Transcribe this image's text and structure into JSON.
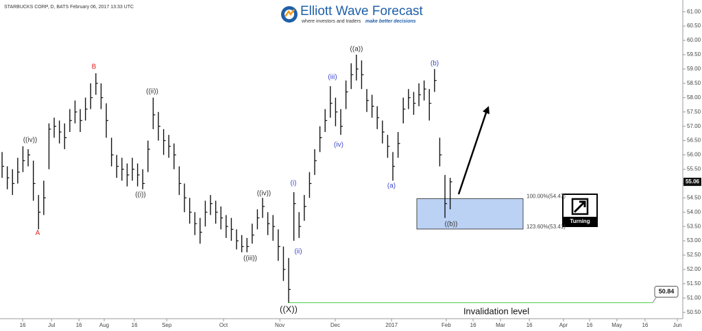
{
  "chart_data": {
    "type": "ohlc",
    "title": "STARBUCKS CORP, D, BATS  February 06, 2017 13:33 UTC",
    "logo": {
      "name": "Elliott Wave Forecast",
      "tagline_1": "where investors and traders",
      "tagline_2": "make better decisions"
    },
    "color": "#111111",
    "x": [
      0,
      2,
      4,
      6,
      8,
      10,
      12,
      14,
      16,
      18,
      20,
      22,
      24,
      26,
      28,
      30,
      32,
      34,
      36,
      38,
      40,
      42,
      44,
      46,
      48,
      50,
      52,
      54,
      56,
      58,
      60,
      62,
      64,
      66,
      68,
      70,
      72,
      74,
      76,
      78,
      80,
      82,
      84,
      86,
      88,
      90,
      92,
      94,
      96,
      98,
      100,
      102,
      104,
      106,
      108,
      110,
      112,
      114,
      116,
      118,
      120,
      122,
      124,
      126,
      128,
      130,
      132,
      134,
      136,
      138,
      140,
      142,
      144,
      146,
      148,
      150,
      152,
      154,
      156,
      158,
      160,
      162,
      164,
      166,
      168,
      170,
      172
    ],
    "high": [
      56.1,
      55.6,
      55.5,
      55.9,
      56.3,
      56.2,
      55.8,
      54.6,
      55.1,
      57.1,
      57.3,
      57.2,
      57.1,
      57.6,
      57.9,
      57.6,
      58.0,
      58.5,
      58.85,
      58.5,
      57.8,
      56.6,
      56.0,
      55.9,
      55.7,
      55.9,
      55.7,
      55.5,
      56.5,
      58.0,
      57.5,
      56.9,
      56.7,
      56.4,
      55.6,
      55.0,
      54.5,
      54.0,
      53.8,
      54.4,
      54.6,
      54.4,
      54.2,
      53.9,
      53.8,
      53.4,
      53.2,
      53.1,
      53.6,
      54.1,
      54.5,
      54.0,
      53.9,
      53.4,
      52.8,
      52.4,
      54.7,
      54.0,
      54.6,
      55.4,
      56.2,
      57.0,
      57.6,
      58.4,
      58.0,
      57.6,
      58.6,
      59.2,
      59.5,
      59.3,
      58.3,
      58.1,
      57.7,
      57.2,
      56.7,
      56.1,
      56.8,
      58.0,
      58.3,
      58.2,
      58.5,
      58.6,
      58.3,
      59.0,
      56.6,
      55.3,
      55.2
    ],
    "low": [
      55.2,
      54.8,
      54.6,
      55.0,
      55.4,
      55.6,
      54.4,
      53.4,
      53.9,
      55.5,
      56.6,
      56.4,
      56.2,
      56.8,
      57.1,
      56.8,
      57.2,
      57.6,
      58.1,
      57.6,
      56.6,
      55.6,
      55.2,
      55.1,
      54.9,
      55.1,
      54.9,
      54.8,
      55.4,
      56.9,
      56.5,
      56.0,
      55.9,
      55.5,
      54.6,
      54.0,
      53.6,
      53.2,
      52.9,
      53.5,
      53.9,
      53.6,
      53.4,
      53.1,
      53.0,
      52.7,
      52.6,
      52.6,
      52.9,
      53.4,
      53.8,
      53.2,
      53.0,
      52.3,
      51.6,
      50.84,
      53.0,
      53.1,
      53.7,
      54.5,
      55.3,
      56.1,
      56.8,
      57.3,
      57.0,
      56.7,
      57.6,
      58.3,
      58.6,
      58.3,
      57.5,
      57.3,
      56.9,
      56.4,
      55.9,
      55.1,
      55.9,
      57.1,
      57.6,
      57.4,
      57.7,
      57.9,
      57.2,
      58.2,
      55.6,
      53.8,
      54.1
    ],
    "close": [
      55.6,
      55.2,
      55.0,
      55.4,
      55.8,
      56.0,
      55.0,
      54.0,
      54.5,
      56.9,
      57.0,
      56.8,
      56.6,
      57.2,
      57.5,
      57.2,
      57.6,
      58.0,
      58.5,
      58.0,
      57.2,
      56.0,
      55.6,
      55.5,
      55.3,
      55.5,
      55.3,
      55.0,
      56.2,
      57.4,
      57.0,
      56.5,
      56.3,
      56.0,
      55.0,
      54.5,
      54.0,
      53.6,
      53.3,
      54.0,
      54.3,
      54.0,
      53.8,
      53.5,
      53.4,
      53.0,
      52.8,
      52.8,
      53.2,
      53.8,
      54.2,
      53.6,
      53.5,
      52.8,
      52.0,
      51.3,
      54.3,
      53.5,
      54.2,
      55.0,
      55.8,
      56.6,
      57.2,
      57.8,
      57.5,
      57.0,
      58.2,
      58.8,
      59.0,
      58.8,
      57.9,
      57.7,
      57.3,
      56.8,
      56.3,
      55.6,
      56.4,
      57.6,
      58.0,
      57.8,
      58.1,
      58.3,
      57.8,
      58.6,
      56.0,
      54.3,
      55.06
    ],
    "xlim": [
      -0.8,
      261.3
    ],
    "xticks": [
      {
        "value": 7.9,
        "label": "16"
      },
      {
        "value": 19,
        "label": "Jul"
      },
      {
        "value": 29.5,
        "label": "16"
      },
      {
        "value": 39.2,
        "label": "Aug"
      },
      {
        "value": 50.8,
        "label": "16"
      },
      {
        "value": 63.2,
        "label": "Sep"
      },
      {
        "value": 85,
        "label": "Oct"
      },
      {
        "value": 106.6,
        "label": "Nov"
      },
      {
        "value": 127.9,
        "label": "Dec"
      },
      {
        "value": 149.5,
        "label": "2017"
      },
      {
        "value": 170.5,
        "label": "Feb"
      },
      {
        "value": 180.8,
        "label": "16"
      },
      {
        "value": 191.3,
        "label": "Mar"
      },
      {
        "value": 202.4,
        "label": "16"
      },
      {
        "value": 215.5,
        "label": "Apr"
      },
      {
        "value": 225.5,
        "label": "16"
      },
      {
        "value": 236,
        "label": "May"
      },
      {
        "value": 246.8,
        "label": "16"
      },
      {
        "value": 259.2,
        "label": "Jun"
      }
    ],
    "ylim": [
      50.28,
      61.41
    ],
    "yticks": [
      {
        "value": 50.5,
        "label": "50.50"
      },
      {
        "value": 51,
        "label": "51.00"
      },
      {
        "value": 51.5,
        "label": "51.50"
      },
      {
        "value": 52,
        "label": "52.00"
      },
      {
        "value": 52.5,
        "label": "52.50"
      },
      {
        "value": 53,
        "label": "53.00"
      },
      {
        "value": 53.5,
        "label": "53.50"
      },
      {
        "value": 54,
        "label": "54.00"
      },
      {
        "value": 54.5,
        "label": "54.50"
      },
      {
        "value": 55,
        "label": "55.00"
      },
      {
        "value": 55.5,
        "label": "55.50"
      },
      {
        "value": 56,
        "label": "56.00"
      },
      {
        "value": 56.5,
        "label": "56.50"
      },
      {
        "value": 57,
        "label": "57.00"
      },
      {
        "value": 57.5,
        "label": "57.50"
      },
      {
        "value": 58,
        "label": "58.00"
      },
      {
        "value": 58.5,
        "label": "58.50"
      },
      {
        "value": 59,
        "label": "59.00"
      },
      {
        "value": 59.5,
        "label": "59.50"
      },
      {
        "value": 60,
        "label": "60.00"
      },
      {
        "value": 60.5,
        "label": "60.50"
      },
      {
        "value": 61,
        "label": "61.00"
      }
    ],
    "zone": {
      "top": 54.47,
      "bottom": 53.41,
      "top_label": "100.00%(54.47)",
      "bottom_label": "123.60%(53.41)",
      "color": "#bcd2f5"
    },
    "invalidation": {
      "value": 50.84,
      "text": "Invalidation level",
      "color": "#5ad65a"
    },
    "wave_labels": [
      {
        "text": "A",
        "color": "#e0201c"
      },
      {
        "text": "B",
        "color": "#e0201c"
      },
      {
        "text": "((iv))",
        "color": "#333333"
      },
      {
        "text": "((i))",
        "color": "#333333"
      },
      {
        "text": "((ii))",
        "color": "#333333"
      },
      {
        "text": "((iii))",
        "color": "#333333"
      },
      {
        "text": "((iv))",
        "color": "#333333"
      },
      {
        "text": "((X))",
        "color": "#222222"
      },
      {
        "text": "(i)",
        "color": "#3b46c9"
      },
      {
        "text": "(ii)",
        "color": "#3b46c9"
      },
      {
        "text": "(iii)",
        "color": "#3b46c9"
      },
      {
        "text": "(iv)",
        "color": "#3b46c9"
      },
      {
        "text": "((a))",
        "color": "#333333"
      },
      {
        "text": "(a)",
        "color": "#3b46c9"
      },
      {
        "text": "(b)",
        "color": "#3b46c9"
      },
      {
        "text": "((b))",
        "color": "#333333"
      }
    ],
    "icon_label": "Turning"
  }
}
